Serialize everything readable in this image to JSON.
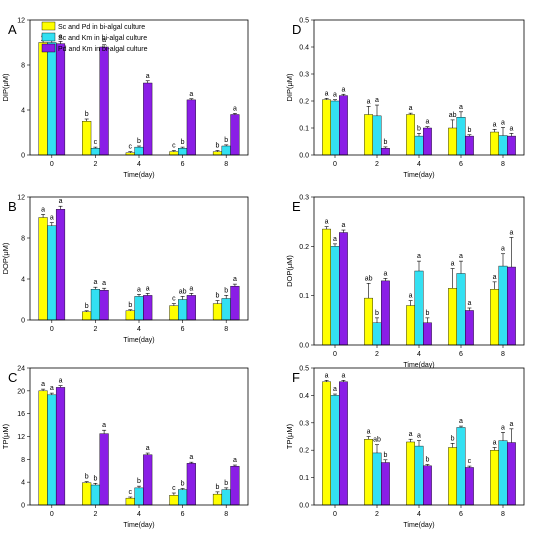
{
  "legend": [
    {
      "label": "Sc and Pd in bi-algal culture",
      "color": "#ffff00"
    },
    {
      "label": "Sc and Km in bi-algal culture",
      "color": "#33e0f2"
    },
    {
      "label": "Pd and Km in bi-algal culture",
      "color": "#8a1ee6"
    }
  ],
  "chart_data": [
    {
      "type": "bar",
      "panel": "A",
      "ylabel": "DIP(μM)",
      "xlabel": "Time(day)",
      "categories": [
        "0",
        "2",
        "4",
        "6",
        "8"
      ],
      "ylim": [
        0,
        12
      ],
      "yticks": [
        "0",
        "4",
        "8",
        "12"
      ],
      "series": [
        {
          "name": "Sc and Pd in bi-algal culture",
          "values": [
            10.0,
            3.0,
            0.2,
            0.3,
            0.3
          ],
          "errors": [
            0.2,
            0.2,
            0.1,
            0.1,
            0.1
          ],
          "letters": [
            "a",
            "b",
            "c",
            "c",
            "b"
          ]
        },
        {
          "name": "Sc and Km in bi-algal culture",
          "values": [
            10.0,
            0.6,
            0.7,
            0.6,
            0.8
          ],
          "errors": [
            0.2,
            0.1,
            0.1,
            0.1,
            0.1
          ],
          "letters": [
            "a",
            "c",
            "b",
            "b",
            "b"
          ]
        },
        {
          "name": "Pd and Km in bi-algal culture",
          "values": [
            9.9,
            9.6,
            6.4,
            4.9,
            3.6
          ],
          "errors": [
            0.2,
            0.2,
            0.2,
            0.1,
            0.1
          ],
          "letters": [
            "a",
            "a",
            "a",
            "a",
            "a"
          ]
        }
      ]
    },
    {
      "type": "bar",
      "panel": "B",
      "ylabel": "DOP(μM)",
      "xlabel": "Time(day)",
      "categories": [
        "0",
        "2",
        "4",
        "6",
        "8"
      ],
      "ylim": [
        0,
        12
      ],
      "yticks": [
        "0",
        "4",
        "8",
        "12"
      ],
      "series": [
        {
          "name": "Sc and Pd in bi-algal culture",
          "values": [
            10.0,
            0.8,
            0.9,
            1.4,
            1.6
          ],
          "errors": [
            0.3,
            0.1,
            0.1,
            0.2,
            0.3
          ],
          "letters": [
            "a",
            "b",
            "b",
            "c",
            "b"
          ]
        },
        {
          "name": "Sc and Km in bi-algal culture",
          "values": [
            9.2,
            3.0,
            2.3,
            2.0,
            2.1
          ],
          "errors": [
            0.3,
            0.2,
            0.2,
            0.3,
            0.3
          ],
          "letters": [
            "a",
            "a",
            "a",
            "ab",
            "b"
          ]
        },
        {
          "name": "Pd and Km in bi-algal culture",
          "values": [
            10.8,
            2.9,
            2.4,
            2.4,
            3.3
          ],
          "errors": [
            0.3,
            0.2,
            0.2,
            0.2,
            0.2
          ],
          "letters": [
            "a",
            "a",
            "a",
            "a",
            "a"
          ]
        }
      ]
    },
    {
      "type": "bar",
      "panel": "C",
      "ylabel": "TP(μM)",
      "xlabel": "Time(day)",
      "categories": [
        "0",
        "2",
        "4",
        "6",
        "8"
      ],
      "ylim": [
        0,
        24
      ],
      "yticks": [
        "0",
        "4",
        "8",
        "12",
        "16",
        "20",
        "24"
      ],
      "series": [
        {
          "name": "Sc and Pd in bi-algal culture",
          "values": [
            20.0,
            3.9,
            1.2,
            1.7,
            1.9
          ],
          "errors": [
            0.3,
            0.2,
            0.2,
            0.4,
            0.4
          ],
          "letters": [
            "a",
            "b",
            "c",
            "c",
            "b"
          ]
        },
        {
          "name": "Sc and Km in bi-algal culture",
          "values": [
            19.3,
            3.5,
            3.0,
            2.7,
            2.7
          ],
          "errors": [
            0.3,
            0.3,
            0.3,
            0.2,
            0.3
          ],
          "letters": [
            "a",
            "b",
            "b",
            "b",
            "b"
          ]
        },
        {
          "name": "Pd and Km in bi-algal culture",
          "values": [
            20.6,
            12.5,
            8.8,
            7.3,
            6.8
          ],
          "errors": [
            0.3,
            0.6,
            0.3,
            0.2,
            0.2
          ],
          "letters": [
            "a",
            "a",
            "a",
            "a",
            "a"
          ]
        }
      ]
    },
    {
      "type": "bar",
      "panel": "D",
      "ylabel": "DIP(μM)",
      "xlabel": "Time(day)",
      "categories": [
        "0",
        "2",
        "4",
        "6",
        "8"
      ],
      "ylim": [
        0,
        0.5
      ],
      "yticks": [
        "0.0",
        "0.1",
        "0.2",
        "0.3",
        "0.4",
        "0.5"
      ],
      "series": [
        {
          "name": "Sc and Pd in bi-algal culture",
          "values": [
            0.205,
            0.15,
            0.15,
            0.1,
            0.085
          ],
          "errors": [
            0.005,
            0.03,
            0.005,
            0.03,
            0.01
          ],
          "letters": [
            "a",
            "a",
            "a",
            "ab",
            "a"
          ]
        },
        {
          "name": "Sc and Km in bi-algal culture",
          "values": [
            0.2,
            0.145,
            0.07,
            0.14,
            0.072
          ],
          "errors": [
            0.005,
            0.04,
            0.01,
            0.02,
            0.03
          ],
          "letters": [
            "a",
            "a",
            "b",
            "a",
            "a"
          ]
        },
        {
          "name": "Pd and Km in bi-algal culture",
          "values": [
            0.22,
            0.025,
            0.1,
            0.07,
            0.07
          ],
          "errors": [
            0.005,
            0.005,
            0.005,
            0.005,
            0.01
          ],
          "letters": [
            "a",
            "b",
            "a",
            "b",
            "a"
          ]
        }
      ]
    },
    {
      "type": "bar",
      "panel": "E",
      "ylabel": "DOP(μM)",
      "xlabel": "Time(day)",
      "categories": [
        "0",
        "2",
        "4",
        "6",
        "8"
      ],
      "ylim": [
        0,
        0.3
      ],
      "yticks": [
        "0.0",
        "0.1",
        "0.2",
        "0.3"
      ],
      "series": [
        {
          "name": "Sc and Pd in bi-algal culture",
          "values": [
            0.235,
            0.095,
            0.08,
            0.115,
            0.113
          ],
          "errors": [
            0.005,
            0.03,
            0.01,
            0.04,
            0.015
          ],
          "letters": [
            "a",
            "ab",
            "a",
            "a",
            "a"
          ]
        },
        {
          "name": "Sc and Km in bi-algal culture",
          "values": [
            0.2,
            0.045,
            0.15,
            0.145,
            0.16
          ],
          "errors": [
            0.005,
            0.01,
            0.02,
            0.025,
            0.025
          ],
          "letters": [
            "a",
            "b",
            "a",
            "a",
            "a"
          ]
        },
        {
          "name": "Pd and Km in bi-algal culture",
          "values": [
            0.228,
            0.13,
            0.045,
            0.07,
            0.158
          ],
          "errors": [
            0.005,
            0.005,
            0.01,
            0.005,
            0.06
          ],
          "letters": [
            "a",
            "a",
            "b",
            "a",
            "a"
          ]
        }
      ]
    },
    {
      "type": "bar",
      "panel": "F",
      "ylabel": "TP(μM)",
      "xlabel": "Time(day)",
      "categories": [
        "0",
        "2",
        "4",
        "6",
        "8"
      ],
      "ylim": [
        0,
        0.5
      ],
      "yticks": [
        "0.0",
        "0.1",
        "0.2",
        "0.3",
        "0.4",
        "0.5"
      ],
      "series": [
        {
          "name": "Sc and Pd in bi-algal culture",
          "values": [
            0.45,
            0.24,
            0.23,
            0.21,
            0.2
          ],
          "errors": [
            0.005,
            0.01,
            0.01,
            0.015,
            0.01
          ],
          "letters": [
            "a",
            "a",
            "a",
            "b",
            "a"
          ]
        },
        {
          "name": "Sc and Km in bi-algal culture",
          "values": [
            0.4,
            0.19,
            0.215,
            0.283,
            0.235
          ],
          "errors": [
            0.005,
            0.03,
            0.02,
            0.005,
            0.03
          ],
          "letters": [
            "a",
            "ab",
            "a",
            "a",
            "a"
          ]
        },
        {
          "name": "Pd and Km in bi-algal culture",
          "values": [
            0.45,
            0.155,
            0.143,
            0.137,
            0.228
          ],
          "errors": [
            0.005,
            0.01,
            0.005,
            0.005,
            0.05
          ],
          "letters": [
            "a",
            "b",
            "b",
            "c",
            "a"
          ]
        }
      ]
    }
  ]
}
